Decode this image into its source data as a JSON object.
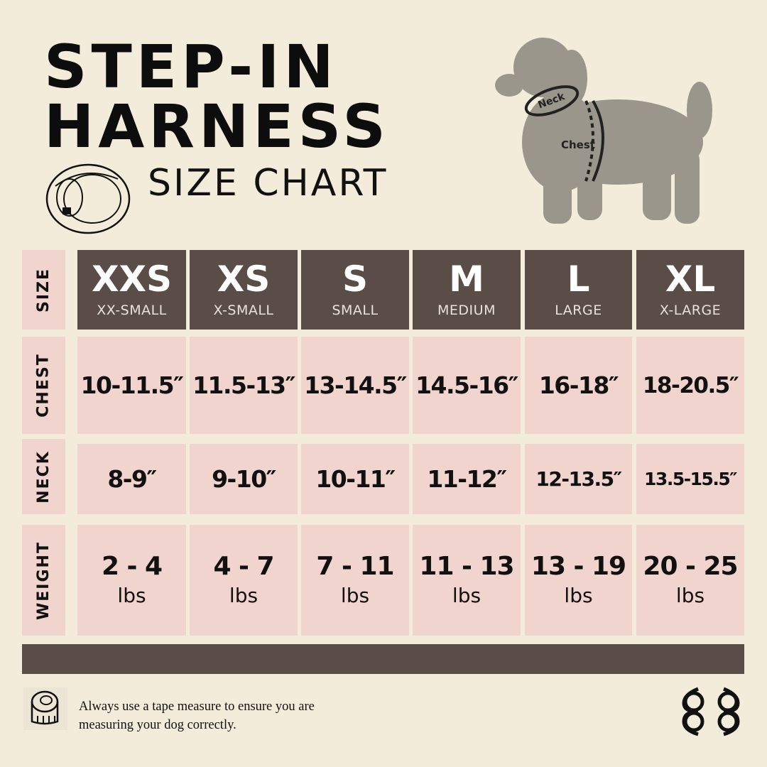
{
  "header": {
    "title_line1": "STEP-IN",
    "title_line2": "HARNESS",
    "subtitle": "SIZE CHART",
    "dog_labels": {
      "neck": "Neck",
      "chest": "Chest"
    }
  },
  "colors": {
    "background": "#f4ecdb",
    "header_cell": "#5a4d47",
    "value_cell": "#f0d4cd",
    "dog": "#9a968c"
  },
  "row_labels": [
    "SIZE",
    "CHEST",
    "NECK",
    "WEIGHT"
  ],
  "sizes": [
    {
      "code": "XXS",
      "name": "XX-SMALL",
      "chest": "10-11.5″",
      "neck": "8-9″",
      "weight": "2 - 4",
      "unit": "lbs"
    },
    {
      "code": "XS",
      "name": "X-SMALL",
      "chest": "11.5-13″",
      "neck": "9-10″",
      "weight": "4 - 7",
      "unit": "lbs"
    },
    {
      "code": "S",
      "name": "SMALL",
      "chest": "13-14.5″",
      "neck": "10-11″",
      "weight": "7 - 11",
      "unit": "lbs"
    },
    {
      "code": "M",
      "name": "MEDIUM",
      "chest": "14.5-16″",
      "neck": "11-12″",
      "weight": "11 - 13",
      "unit": "lbs"
    },
    {
      "code": "L",
      "name": "LARGE",
      "chest": "16-18″",
      "neck": "12-13.5″",
      "weight": "13 - 19",
      "unit": "lbs"
    },
    {
      "code": "XL",
      "name": "X-LARGE",
      "chest": "18-20.5″",
      "neck": "13.5-15.5″",
      "weight": "20 - 25",
      "unit": "lbs"
    }
  ],
  "footer": {
    "note_line1": "Always use a tape measure to ensure you are",
    "note_line2": "measuring your dog correctly.",
    "icons": {
      "tape": "tape-measure-icon",
      "logo": "brand-logo-icon"
    }
  }
}
